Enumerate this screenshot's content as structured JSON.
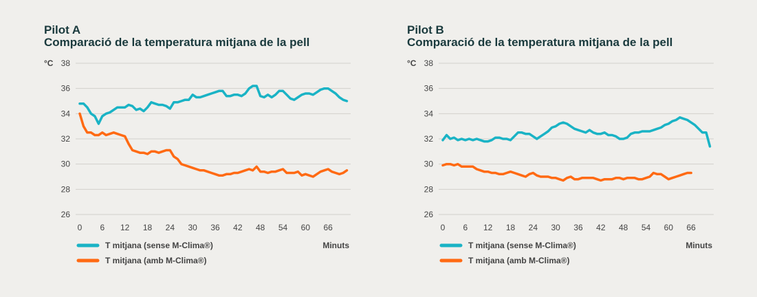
{
  "colors": {
    "sense": "#1ab3c5",
    "amb": "#ff6a13",
    "grid": "#d2d0cc",
    "text": "#1a3a3d"
  },
  "chart_data": [
    {
      "type": "line",
      "title": "Pilot A",
      "subtitle": "Comparació de la temperatura mitjana de la pell",
      "ylabel": "°C",
      "xlabel": "Minuts",
      "ylim": [
        26,
        38
      ],
      "xlim": [
        0,
        72
      ],
      "yticks": [
        26,
        28,
        30,
        32,
        34,
        36,
        38
      ],
      "xticks": [
        0,
        6,
        12,
        18,
        24,
        30,
        36,
        42,
        48,
        54,
        60,
        66
      ],
      "grid": true,
      "legend": "bottom-left",
      "series": [
        {
          "name": "T mitjana (sense M-Clima®)",
          "color": "#1ab3c5",
          "x": [
            0,
            1,
            2,
            3,
            4,
            5,
            6,
            7,
            8,
            9,
            10,
            11,
            12,
            13,
            14,
            15,
            16,
            17,
            18,
            19,
            20,
            21,
            22,
            23,
            24,
            25,
            26,
            27,
            28,
            29,
            30,
            31,
            32,
            33,
            34,
            35,
            36,
            37,
            38,
            39,
            40,
            41,
            42,
            43,
            44,
            45,
            46,
            47,
            48,
            49,
            50,
            51,
            52,
            53,
            54,
            55,
            56,
            57,
            58,
            59,
            60,
            61,
            62,
            63,
            64,
            65,
            66,
            67,
            68,
            69,
            70,
            71
          ],
          "y": [
            34.8,
            34.8,
            34.5,
            34.0,
            33.8,
            33.2,
            33.8,
            34.0,
            34.1,
            34.3,
            34.5,
            34.5,
            34.5,
            34.7,
            34.6,
            34.3,
            34.4,
            34.2,
            34.5,
            34.9,
            34.8,
            34.7,
            34.7,
            34.6,
            34.4,
            34.9,
            34.9,
            35.0,
            35.1,
            35.1,
            35.5,
            35.3,
            35.3,
            35.4,
            35.5,
            35.6,
            35.7,
            35.8,
            35.8,
            35.4,
            35.4,
            35.5,
            35.5,
            35.4,
            35.6,
            36.0,
            36.2,
            36.2,
            35.4,
            35.3,
            35.5,
            35.3,
            35.5,
            35.8,
            35.8,
            35.5,
            35.2,
            35.1,
            35.3,
            35.5,
            35.6,
            35.6,
            35.5,
            35.7,
            35.9,
            36.0,
            36.0,
            35.8,
            35.6,
            35.3,
            35.1,
            35.0
          ]
        },
        {
          "name": "T mitjana (amb M-Clima®)",
          "color": "#ff6a13",
          "x": [
            0,
            1,
            2,
            3,
            4,
            5,
            6,
            7,
            8,
            9,
            10,
            11,
            12,
            13,
            14,
            15,
            16,
            17,
            18,
            19,
            20,
            21,
            22,
            23,
            24,
            25,
            26,
            27,
            28,
            29,
            30,
            31,
            32,
            33,
            34,
            35,
            36,
            37,
            38,
            39,
            40,
            41,
            42,
            43,
            44,
            45,
            46,
            47,
            48,
            49,
            50,
            51,
            52,
            53,
            54,
            55,
            56,
            57,
            58,
            59,
            60,
            61,
            62,
            63,
            64,
            65,
            66,
            67,
            68,
            69,
            70,
            71
          ],
          "y": [
            34.0,
            33.0,
            32.5,
            32.5,
            32.3,
            32.3,
            32.5,
            32.3,
            32.4,
            32.5,
            32.4,
            32.3,
            32.2,
            31.6,
            31.1,
            31.0,
            30.9,
            30.9,
            30.8,
            31.0,
            31.0,
            30.9,
            31.0,
            31.1,
            31.1,
            30.6,
            30.4,
            30.0,
            29.9,
            29.8,
            29.7,
            29.6,
            29.5,
            29.5,
            29.4,
            29.3,
            29.2,
            29.1,
            29.1,
            29.2,
            29.2,
            29.3,
            29.3,
            29.4,
            29.5,
            29.6,
            29.5,
            29.8,
            29.4,
            29.4,
            29.3,
            29.4,
            29.4,
            29.5,
            29.6,
            29.3,
            29.3,
            29.3,
            29.4,
            29.1,
            29.2,
            29.1,
            29.0,
            29.2,
            29.4,
            29.5,
            29.6,
            29.4,
            29.3,
            29.2,
            29.3,
            29.5
          ]
        }
      ]
    },
    {
      "type": "line",
      "title": "Pilot B",
      "subtitle": "Comparació de la temperatura mitjana de la pell",
      "ylabel": "°C",
      "xlabel": "Minuts",
      "ylim": [
        26,
        38
      ],
      "xlim": [
        0,
        72
      ],
      "yticks": [
        26,
        28,
        30,
        32,
        34,
        36,
        38
      ],
      "xticks": [
        0,
        6,
        12,
        18,
        24,
        30,
        36,
        42,
        48,
        54,
        60,
        66
      ],
      "grid": true,
      "legend": "bottom-left",
      "series": [
        {
          "name": "T mitjana (sense M-Clima®)",
          "color": "#1ab3c5",
          "x": [
            0,
            1,
            2,
            3,
            4,
            5,
            6,
            7,
            8,
            9,
            10,
            11,
            12,
            13,
            14,
            15,
            16,
            17,
            18,
            19,
            20,
            21,
            22,
            23,
            24,
            25,
            26,
            27,
            28,
            29,
            30,
            31,
            32,
            33,
            34,
            35,
            36,
            37,
            38,
            39,
            40,
            41,
            42,
            43,
            44,
            45,
            46,
            47,
            48,
            49,
            50,
            51,
            52,
            53,
            54,
            55,
            56,
            57,
            58,
            59,
            60,
            61,
            62,
            63,
            64,
            65,
            66,
            67,
            68,
            69,
            70,
            71
          ],
          "y": [
            31.9,
            32.3,
            32.0,
            32.1,
            31.9,
            32.0,
            31.9,
            32.0,
            31.9,
            32.0,
            31.9,
            31.8,
            31.8,
            31.9,
            32.1,
            32.1,
            32.0,
            32.0,
            31.9,
            32.2,
            32.5,
            32.5,
            32.4,
            32.4,
            32.2,
            32.0,
            32.2,
            32.4,
            32.6,
            32.9,
            33.0,
            33.2,
            33.3,
            33.2,
            33.0,
            32.8,
            32.7,
            32.6,
            32.5,
            32.7,
            32.5,
            32.4,
            32.4,
            32.5,
            32.3,
            32.3,
            32.2,
            32.0,
            32.0,
            32.1,
            32.4,
            32.5,
            32.5,
            32.6,
            32.6,
            32.6,
            32.7,
            32.8,
            32.9,
            33.1,
            33.2,
            33.4,
            33.5,
            33.7,
            33.6,
            33.5,
            33.3,
            33.1,
            32.8,
            32.5,
            32.5,
            31.4
          ]
        },
        {
          "name": "T mitjana (amb M-Clima®)",
          "color": "#ff6a13",
          "x": [
            0,
            1,
            2,
            3,
            4,
            5,
            6,
            7,
            8,
            9,
            10,
            11,
            12,
            13,
            14,
            15,
            16,
            17,
            18,
            19,
            20,
            21,
            22,
            23,
            24,
            25,
            26,
            27,
            28,
            29,
            30,
            31,
            32,
            33,
            34,
            35,
            36,
            37,
            38,
            39,
            40,
            41,
            42,
            43,
            44,
            45,
            46,
            47,
            48,
            49,
            50,
            51,
            52,
            53,
            54,
            55,
            56,
            57,
            58,
            59,
            60,
            61,
            62,
            63,
            64,
            65,
            66
          ],
          "y": [
            29.9,
            30.0,
            30.0,
            29.9,
            30.0,
            29.8,
            29.8,
            29.8,
            29.8,
            29.6,
            29.5,
            29.4,
            29.4,
            29.3,
            29.3,
            29.2,
            29.2,
            29.3,
            29.4,
            29.3,
            29.2,
            29.1,
            29.0,
            29.2,
            29.3,
            29.1,
            29.0,
            29.0,
            29.0,
            28.9,
            28.9,
            28.8,
            28.7,
            28.9,
            29.0,
            28.8,
            28.8,
            28.9,
            28.9,
            28.9,
            28.9,
            28.8,
            28.7,
            28.8,
            28.8,
            28.8,
            28.9,
            28.9,
            28.8,
            28.9,
            28.9,
            28.9,
            28.8,
            28.8,
            28.9,
            29.0,
            29.3,
            29.2,
            29.2,
            29.0,
            28.8,
            28.9,
            29.0,
            29.1,
            29.2,
            29.3,
            29.3
          ]
        }
      ]
    }
  ]
}
